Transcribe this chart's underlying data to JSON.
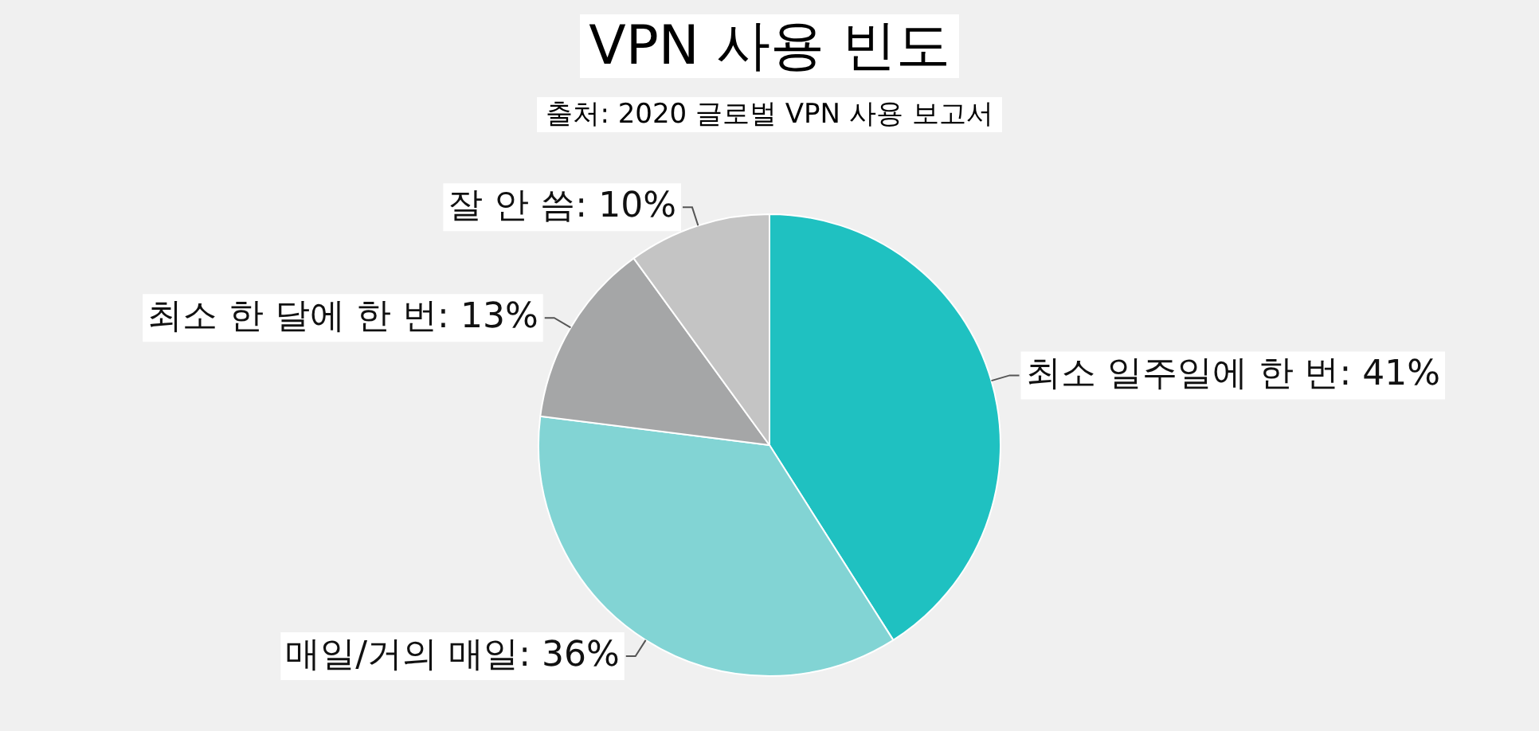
{
  "chart_data": {
    "type": "pie",
    "title": "VPN 사용 빈도",
    "subtitle": "출처: 2020 글로벌 VPN 사용 보고서",
    "categories": [
      "최소 일주일에 한 번",
      "매일/거의 매일",
      "최소 한 달에 한 번",
      "잘 안 씀"
    ],
    "values": [
      41,
      36,
      13,
      10
    ],
    "value_labels": [
      "41%",
      "36%",
      "13%",
      "10%"
    ],
    "colors": [
      "#1fc1c1",
      "#82d4d4",
      "#a5a6a7",
      "#c4c4c4"
    ],
    "legend": false
  }
}
